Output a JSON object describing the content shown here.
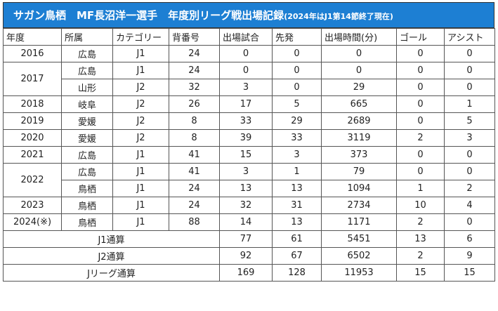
{
  "title": {
    "main": "サガン鳥栖　MF長沼洋一選手　年度別リーグ戦出場記録",
    "note": "(2024年はJ1第14節終了現在)"
  },
  "table": {
    "headers": [
      "年度",
      "所属",
      "カテゴリー",
      "背番号",
      "出場試合",
      "先発",
      "出場時間(分)",
      "ゴール",
      "アシスト"
    ],
    "groups": [
      {
        "year": "2016",
        "rows": [
          [
            "広島",
            "J1",
            24,
            0,
            0,
            0,
            0,
            0
          ]
        ]
      },
      {
        "year": "2017",
        "rows": [
          [
            "広島",
            "J1",
            24,
            0,
            0,
            0,
            0,
            0
          ],
          [
            "山形",
            "J2",
            32,
            3,
            0,
            29,
            0,
            0
          ]
        ]
      },
      {
        "year": "2018",
        "rows": [
          [
            "岐阜",
            "J2",
            26,
            17,
            5,
            665,
            0,
            1
          ]
        ]
      },
      {
        "year": "2019",
        "rows": [
          [
            "愛媛",
            "J2",
            8,
            33,
            29,
            2689,
            0,
            5
          ]
        ]
      },
      {
        "year": "2020",
        "rows": [
          [
            "愛媛",
            "J2",
            8,
            39,
            33,
            3119,
            2,
            3
          ]
        ]
      },
      {
        "year": "2021",
        "rows": [
          [
            "広島",
            "J1",
            41,
            15,
            3,
            373,
            0,
            0
          ]
        ]
      },
      {
        "year": "2022",
        "rows": [
          [
            "広島",
            "J1",
            41,
            3,
            1,
            79,
            0,
            0
          ],
          [
            "鳥栖",
            "J1",
            24,
            13,
            13,
            1094,
            1,
            2
          ]
        ]
      },
      {
        "year": "2023",
        "rows": [
          [
            "鳥栖",
            "J1",
            24,
            32,
            31,
            2734,
            10,
            4
          ]
        ]
      },
      {
        "year": "2024(※)",
        "rows": [
          [
            "鳥栖",
            "J1",
            88,
            14,
            13,
            1171,
            2,
            0
          ]
        ]
      }
    ],
    "totals": [
      {
        "label": "J1通算",
        "values": [
          77,
          61,
          5451,
          13,
          6
        ]
      },
      {
        "label": "J2通算",
        "values": [
          92,
          67,
          6502,
          2,
          9
        ]
      },
      {
        "label": "Jリーグ通算",
        "values": [
          169,
          128,
          11953,
          15,
          15
        ]
      }
    ]
  }
}
